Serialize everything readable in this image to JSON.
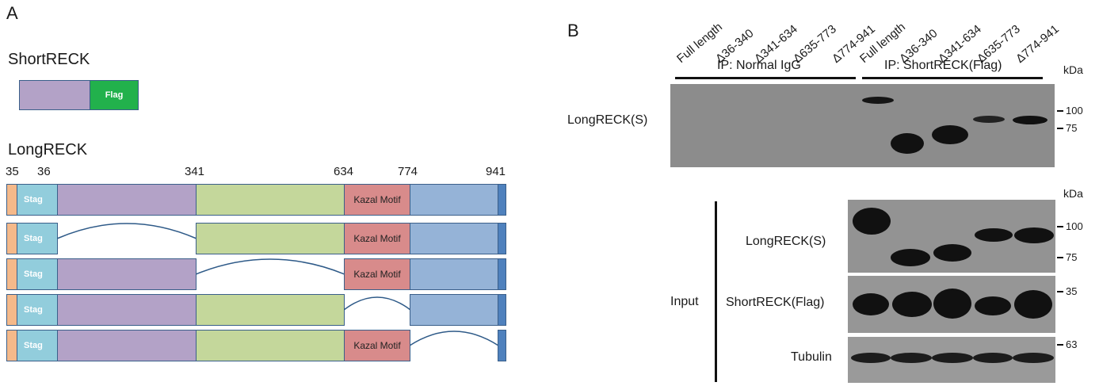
{
  "panel_a": {
    "letter": "A",
    "short_title": "ShortRECK",
    "flag_label": "Flag",
    "long_title": "LongRECK",
    "positions": [
      "35",
      "36",
      "341",
      "634",
      "774",
      "941"
    ],
    "stag_label": "Stag",
    "kazal_label": "Kazal Motif",
    "constructs": [
      {
        "deleted": "none"
      },
      {
        "deleted": "36-340"
      },
      {
        "deleted": "341-634"
      },
      {
        "deleted": "635-773"
      },
      {
        "deleted": "774-941"
      }
    ],
    "colors": {
      "signal": "#f5b98a",
      "stag": "#92cddc",
      "purple": "#b3a2c7",
      "green": "#c4d79b",
      "kazal": "#d88b8b",
      "blue": "#95b3d7",
      "end": "#4f81bd",
      "flag": "#22b14c"
    }
  },
  "panel_b": {
    "letter": "B",
    "lanes": [
      "Full length",
      "Δ36-340",
      "Δ341-634",
      "Δ635-773",
      "Δ774-941",
      "Full length",
      "Δ36-340",
      "Δ341-634",
      "Δ635-773",
      "Δ774-941"
    ],
    "ip_normal": "IP: Normal IgG",
    "ip_flag": "IP: ShortRECK(Flag)",
    "kda": "kDa",
    "ip_blot_label": "LongRECK(S)",
    "ip_markers": [
      "100",
      "75"
    ],
    "input_label": "Input",
    "input_blots": [
      {
        "label": "LongRECK(S)",
        "markers": [
          "100",
          "75"
        ]
      },
      {
        "label": "ShortRECK(Flag)",
        "markers": [
          "35"
        ]
      },
      {
        "label": "Tubulin",
        "markers": [
          "63"
        ]
      }
    ]
  }
}
